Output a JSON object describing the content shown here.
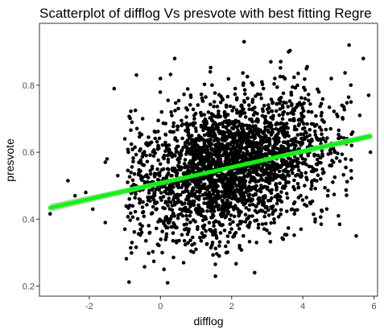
{
  "chart_data": {
    "type": "scatter",
    "title": "Scatterplot of difflog Vs presvote with best fitting Regre",
    "xlabel": "difflog",
    "ylabel": "presvote",
    "xlim": [
      -3.4,
      6.1
    ],
    "ylim": [
      0.17,
      0.985
    ],
    "x_ticks": [
      -2,
      0,
      2,
      4,
      6
    ],
    "y_ticks": [
      0.2,
      0.4,
      0.6,
      0.8
    ],
    "grid": false,
    "legend": "none",
    "point_color": "#000000",
    "regression_line": {
      "color": "#00ff00",
      "band_color": "#bdbdbd",
      "x": [
        -3.1,
        5.9
      ],
      "y": [
        0.434,
        0.648
      ]
    },
    "points_note_free": true,
    "series": [
      {
        "points": [
          [
            -3.1,
            0.416
          ],
          [
            -2.6,
            0.515
          ],
          [
            -2.4,
            0.47
          ],
          [
            -2.1,
            0.48
          ],
          [
            -1.9,
            0.43
          ],
          [
            -1.55,
            0.39
          ],
          [
            -1.55,
            0.57
          ],
          [
            -1.5,
            0.58
          ],
          [
            -1.3,
            0.79
          ],
          [
            -1.2,
            0.53
          ],
          [
            -1.0,
            0.37
          ],
          [
            -1.0,
            0.64
          ],
          [
            -0.9,
            0.6
          ],
          [
            -0.8,
            0.33
          ],
          [
            -0.7,
            0.49
          ],
          [
            -0.6,
            0.46
          ],
          [
            -0.5,
            0.42
          ],
          [
            -0.5,
            0.7
          ],
          [
            -0.4,
            0.59
          ],
          [
            -0.3,
            0.36
          ],
          [
            -0.2,
            0.51
          ],
          [
            -0.15,
            0.66
          ],
          [
            -0.1,
            0.45
          ],
          [
            0.0,
            0.82
          ],
          [
            0.05,
            0.3
          ],
          [
            0.1,
            0.25
          ],
          [
            0.15,
            0.62
          ],
          [
            0.2,
            0.21
          ],
          [
            0.2,
            0.55
          ],
          [
            0.25,
            0.4
          ],
          [
            0.3,
            0.72
          ],
          [
            0.35,
            0.48
          ],
          [
            0.4,
            0.88
          ],
          [
            0.45,
            0.33
          ],
          [
            0.5,
            0.58
          ],
          [
            0.55,
            0.43
          ],
          [
            0.6,
            0.68
          ],
          [
            0.65,
            0.27
          ],
          [
            0.7,
            0.52
          ],
          [
            0.75,
            0.61
          ],
          [
            0.8,
            0.37
          ],
          [
            0.85,
            0.77
          ],
          [
            0.9,
            0.47
          ],
          [
            0.95,
            0.56
          ],
          [
            1.0,
            0.31
          ],
          [
            1.05,
            0.64
          ],
          [
            1.1,
            0.42
          ],
          [
            1.15,
            0.71
          ],
          [
            1.2,
            0.5
          ],
          [
            1.25,
            0.35
          ],
          [
            1.3,
            0.6
          ],
          [
            1.35,
            0.45
          ],
          [
            1.4,
            0.84
          ],
          [
            1.45,
            0.53
          ],
          [
            1.5,
            0.39
          ],
          [
            1.55,
            0.67
          ],
          [
            1.6,
            0.48
          ],
          [
            1.65,
            0.29
          ],
          [
            1.7,
            0.57
          ],
          [
            1.75,
            0.62
          ],
          [
            1.8,
            0.44
          ],
          [
            1.85,
            0.74
          ],
          [
            1.9,
            0.52
          ],
          [
            1.95,
            0.36
          ],
          [
            2.0,
            0.63
          ],
          [
            2.05,
            0.47
          ],
          [
            2.1,
            0.79
          ],
          [
            2.15,
            0.55
          ],
          [
            2.2,
            0.41
          ],
          [
            2.25,
            0.68
          ],
          [
            2.3,
            0.5
          ],
          [
            2.35,
            0.93
          ],
          [
            2.4,
            0.59
          ],
          [
            2.45,
            0.38
          ],
          [
            2.5,
            0.66
          ],
          [
            2.55,
            0.46
          ],
          [
            2.6,
            0.73
          ],
          [
            2.65,
            0.54
          ],
          [
            2.7,
            0.33
          ],
          [
            2.75,
            0.61
          ],
          [
            2.8,
            0.49
          ],
          [
            2.85,
            0.81
          ],
          [
            2.9,
            0.57
          ],
          [
            2.95,
            0.42
          ],
          [
            3.0,
            0.69
          ],
          [
            3.05,
            0.52
          ],
          [
            3.1,
            0.87
          ],
          [
            3.15,
            0.6
          ],
          [
            3.2,
            0.39
          ],
          [
            3.25,
            0.65
          ],
          [
            3.3,
            0.47
          ],
          [
            3.35,
            0.76
          ],
          [
            3.4,
            0.56
          ],
          [
            3.45,
            0.34
          ],
          [
            3.5,
            0.63
          ],
          [
            3.55,
            0.51
          ],
          [
            3.6,
            0.9
          ],
          [
            3.65,
            0.58
          ],
          [
            3.7,
            0.43
          ],
          [
            3.75,
            0.7
          ],
          [
            3.8,
            0.53
          ],
          [
            3.85,
            0.8
          ],
          [
            3.9,
            0.61
          ],
          [
            3.95,
            0.37
          ],
          [
            4.0,
            0.67
          ],
          [
            4.05,
            0.5
          ],
          [
            4.1,
            0.85
          ],
          [
            4.15,
            0.59
          ],
          [
            4.2,
            0.45
          ],
          [
            4.25,
            0.72
          ],
          [
            4.3,
            0.55
          ],
          [
            4.35,
            0.4
          ],
          [
            4.4,
            0.64
          ],
          [
            4.45,
            0.78
          ],
          [
            4.5,
            0.52
          ],
          [
            4.6,
            0.69
          ],
          [
            4.7,
            0.47
          ],
          [
            4.8,
            0.82
          ],
          [
            4.9,
            0.6
          ],
          [
            5.0,
            0.41
          ],
          [
            5.1,
            0.74
          ],
          [
            5.2,
            0.58
          ],
          [
            5.3,
            0.92
          ],
          [
            5.4,
            0.66
          ],
          [
            5.5,
            0.35
          ],
          [
            5.6,
            0.71
          ],
          [
            5.7,
            0.88
          ],
          [
            5.85,
            0.77
          ],
          [
            5.9,
            0.6
          ]
        ]
      }
    ]
  }
}
